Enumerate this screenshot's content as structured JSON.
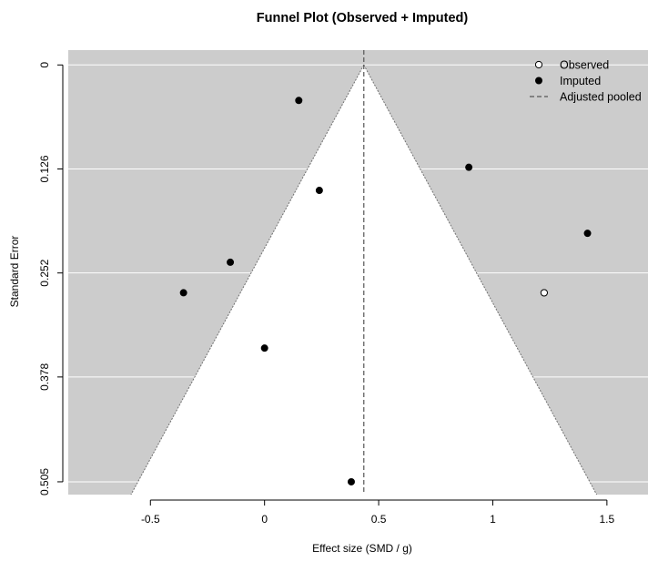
{
  "chart_data": {
    "type": "scatter",
    "title": "Funnel Plot (Observed + Imputed)",
    "xlabel": "Effect size (SMD / g)",
    "ylabel": "Standard Error",
    "xlim": [
      -0.86,
      1.68
    ],
    "ylim": [
      0.5205,
      -0.018
    ],
    "x_reversed": false,
    "y_reversed": true,
    "x_ticks": [
      -0.5,
      0,
      0.5,
      1,
      1.5
    ],
    "x_tick_labels": [
      "-0.5",
      "0",
      "0.5",
      "1",
      "1.5"
    ],
    "y_ticks": [
      0,
      0.126,
      0.252,
      0.378,
      0.505
    ],
    "y_tick_labels": [
      "0",
      "0.126",
      "0.252",
      "0.378",
      "0.505"
    ],
    "grid": true,
    "funnel": {
      "center": 0.435,
      "max_se": 0.505,
      "z": 1.96
    },
    "adjusted_pooled": 0.435,
    "legend_position": "top-right",
    "series": [
      {
        "name": "Observed",
        "marker": "open-circle",
        "color": "#000000",
        "points": [
          {
            "x": 1.225,
            "y": 0.276
          }
        ]
      },
      {
        "name": "Imputed",
        "marker": "filled-circle",
        "color": "#000000",
        "points": [
          {
            "x": 0.15,
            "y": 0.043
          },
          {
            "x": 0.895,
            "y": 0.124
          },
          {
            "x": 0.24,
            "y": 0.152
          },
          {
            "x": 1.415,
            "y": 0.204
          },
          {
            "x": -0.15,
            "y": 0.239
          },
          {
            "x": -0.355,
            "y": 0.276
          },
          {
            "x": 0.0,
            "y": 0.343
          },
          {
            "x": 0.38,
            "y": 0.505
          }
        ]
      }
    ],
    "legend": [
      {
        "label": "Observed",
        "symbol": "open-circle"
      },
      {
        "label": "Imputed",
        "symbol": "filled-circle"
      },
      {
        "label": "Adjusted pooled",
        "symbol": "dashed-line"
      }
    ],
    "colors": {
      "background_region": "#cccccc",
      "funnel_fill": "#ffffff",
      "grid": "#ffffff",
      "funnel_edge": "#707070",
      "pooled_line": "#555555"
    }
  }
}
